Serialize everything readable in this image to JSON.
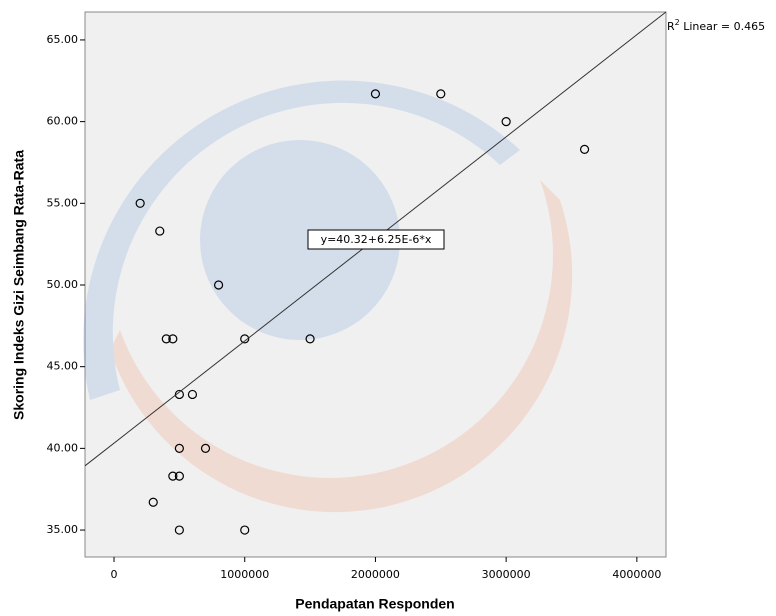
{
  "chart_data": {
    "type": "scatter",
    "x_label": "Pendapatan Responden",
    "y_label": "Skoring Indeks Gizi Seimbang Rata-Rata",
    "x": [
      200000,
      350000,
      800000,
      400000,
      450000,
      1000000,
      1500000,
      500000,
      600000,
      500000,
      700000,
      450000,
      500000,
      300000,
      500000,
      1000000,
      2000000,
      2500000,
      3000000,
      3600000
    ],
    "values": [
      55,
      53.3,
      50,
      46.7,
      46.7,
      46.7,
      46.7,
      43.3,
      43.3,
      40,
      40,
      38.3,
      38.3,
      36.7,
      35,
      35,
      61.7,
      61.7,
      60,
      58.3
    ],
    "color": "#000000",
    "xlim": [
      -222000,
      4223000
    ],
    "ylim": [
      33.35,
      66.71
    ],
    "xticks": [
      0,
      1000000,
      2000000,
      3000000,
      4000000
    ],
    "yticks": [
      {
        "value": 35,
        "label": "35.00"
      },
      {
        "value": 40,
        "label": "40.00"
      },
      {
        "value": 45,
        "label": "45.00"
      },
      {
        "value": 50,
        "label": "50.00"
      },
      {
        "value": 55,
        "label": "55.00"
      },
      {
        "value": 60,
        "label": "60.00"
      },
      {
        "value": 65,
        "label": "65.00"
      }
    ],
    "fit": {
      "intercept": 40.32,
      "slope": 6.25e-06,
      "equation": "y=40.32+6.25E-6*x",
      "r2_base": "R",
      "r2_sup": "2",
      "r2_text": " Linear = 0.465"
    }
  }
}
